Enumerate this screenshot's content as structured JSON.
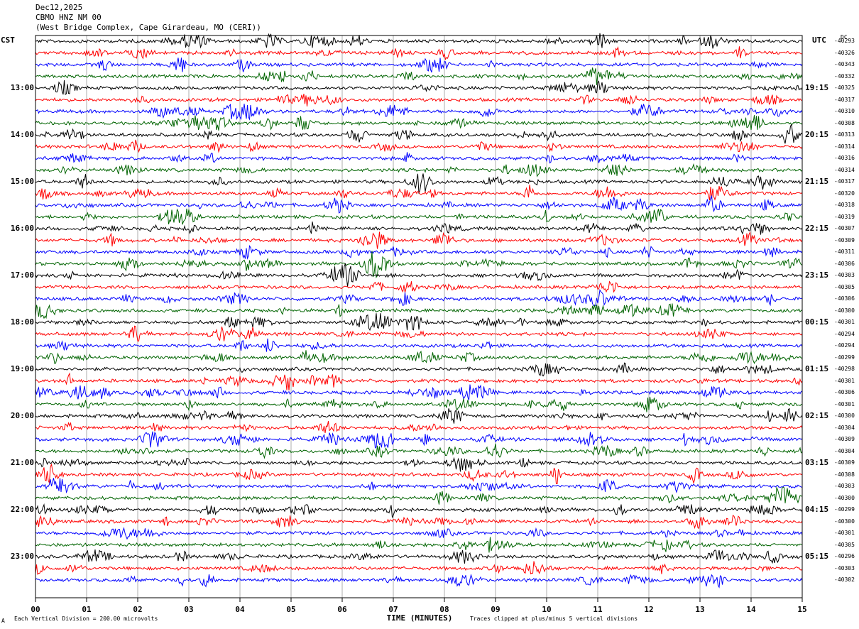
{
  "header": {
    "date": "Dec12,2025",
    "station": "CBMO HNZ NM 00",
    "location": "(West Bridge Complex, Cape Girardeau, MO (CERI))"
  },
  "left_timezone": "CST",
  "right_timezone": "UTC",
  "dc_label": "DC",
  "footer": {
    "scale_note": "Each Vertical Division =  200.00 microvolts",
    "clip_note": "Traces clipped at plus/minus 5 vertical divisions",
    "corner_mark": "A"
  },
  "chart_data": {
    "type": "seismogram helicorder",
    "xlabel": "TIME (MINUTES)",
    "x_ticks": [
      "00",
      "01",
      "02",
      "03",
      "04",
      "05",
      "06",
      "07",
      "08",
      "09",
      "10",
      "11",
      "12",
      "13",
      "14",
      "15"
    ],
    "xlim": [
      0,
      15
    ],
    "trace_colors": [
      "#000000",
      "#ff0000",
      "#0000ff",
      "#006400"
    ],
    "left_hour_labels": [
      "13:00",
      "14:00",
      "15:00",
      "16:00",
      "17:00",
      "18:00",
      "19:00",
      "20:00",
      "21:00",
      "22:00",
      "23:00"
    ],
    "right_hour_labels": [
      "19:15",
      "20:15",
      "21:15",
      "22:15",
      "23:15",
      "00:15",
      "01:15",
      "02:15",
      "03:15",
      "04:15",
      "05:15"
    ],
    "dc_offsets": [
      "-40293",
      "-40326",
      "-40343",
      "-40332",
      "-40325",
      "-40317",
      "-40310",
      "-40308",
      "-40313",
      "-40314",
      "-40316",
      "-40314",
      "-40317",
      "-40320",
      "-40318",
      "-40319",
      "-40307",
      "-40309",
      "-40311",
      "-40306",
      "-40303",
      "-40305",
      "-40306",
      "-40300",
      "-40301",
      "-40294",
      "-40294",
      "-40299",
      "-40298",
      "-40301",
      "-40306",
      "-40301",
      "-40300",
      "-40304",
      "-40309",
      "-40304",
      "-40309",
      "-40308",
      "-40303",
      "-40300",
      "-40299",
      "-40300",
      "-40301",
      "-40305",
      "-40296",
      "-40303",
      "-40302"
    ]
  }
}
